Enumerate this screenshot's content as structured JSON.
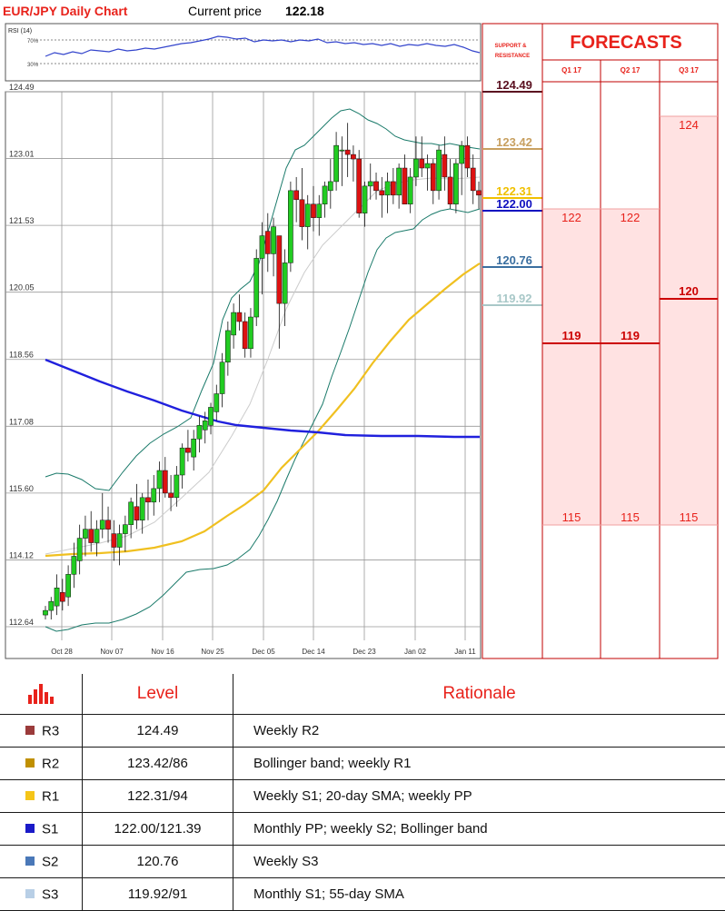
{
  "header": {
    "title": "EUR/JPY Daily Chart",
    "price_label": "Current price",
    "price_value": "122.18"
  },
  "rsi": {
    "label": "RSI (14)",
    "level_high": "70%",
    "level_low": "30%"
  },
  "sr_header": "SUPPORT & RESISTANCE",
  "forecasts": {
    "title": "FORECASTS",
    "quarters": [
      "Q1 17",
      "Q2 17",
      "Q3 17"
    ],
    "columns": [
      {
        "high": 122,
        "mid": 119,
        "low": 115
      },
      {
        "high": 122,
        "mid": 119,
        "low": 115
      },
      {
        "high": 124,
        "mid": 120,
        "low": 115
      }
    ]
  },
  "levels": [
    {
      "value": "124.49",
      "color": "#5a1020",
      "key": "R3"
    },
    {
      "value": "123.42",
      "color": "#c8a060",
      "key": "R2"
    },
    {
      "value": "122.31",
      "color": "#f0c000",
      "key": "R1"
    },
    {
      "value": "122.00",
      "color": "#1010c0",
      "key": "S1"
    },
    {
      "value": "120.76",
      "color": "#3a6fa0",
      "key": "S2"
    },
    {
      "value": "119.92",
      "color": "#a8c8c8",
      "key": "S3"
    }
  ],
  "chart_data": {
    "type": "candlestick",
    "title": "EUR/JPY Daily Chart",
    "y_ticks": [
      "124.49",
      "123.01",
      "121.53",
      "120.05",
      "118.56",
      "117.08",
      "115.60",
      "114.12",
      "112.64"
    ],
    "x_ticks": [
      "Oct 28",
      "Nov 07",
      "Nov 16",
      "Nov 25",
      "Dec 05",
      "Dec 14",
      "Dec 23",
      "Jan 02",
      "Jan 11"
    ],
    "ylim": [
      112.64,
      124.49
    ],
    "series": [
      {
        "name": "",
        "type": "candles",
        "ohlc": [
          [
            112.9,
            113.1,
            112.8,
            113.0
          ],
          [
            113.0,
            113.3,
            112.8,
            113.2
          ],
          [
            113.1,
            113.8,
            112.9,
            113.5
          ],
          [
            113.4,
            113.7,
            113.0,
            113.2
          ],
          [
            113.3,
            114.0,
            113.1,
            113.8
          ],
          [
            113.8,
            114.5,
            113.5,
            114.2
          ],
          [
            114.1,
            114.9,
            113.8,
            114.6
          ],
          [
            114.6,
            115.1,
            114.2,
            114.8
          ],
          [
            114.8,
            115.2,
            114.3,
            114.5
          ],
          [
            114.5,
            115.0,
            114.2,
            114.8
          ],
          [
            114.8,
            115.6,
            114.6,
            115.0
          ],
          [
            115.0,
            115.3,
            114.5,
            114.8
          ],
          [
            114.7,
            115.0,
            114.1,
            114.4
          ],
          [
            114.4,
            114.9,
            114.0,
            114.7
          ],
          [
            114.7,
            115.1,
            114.3,
            114.9
          ],
          [
            114.9,
            115.5,
            114.6,
            115.4
          ],
          [
            115.3,
            115.8,
            114.8,
            115.0
          ],
          [
            115.0,
            115.6,
            114.7,
            115.5
          ],
          [
            115.5,
            115.9,
            115.0,
            115.4
          ],
          [
            115.4,
            116.0,
            115.1,
            115.7
          ],
          [
            115.7,
            116.3,
            115.4,
            116.1
          ],
          [
            116.1,
            116.4,
            115.5,
            115.6
          ],
          [
            115.6,
            116.0,
            115.2,
            115.5
          ],
          [
            115.5,
            116.2,
            115.3,
            116.0
          ],
          [
            116.0,
            116.7,
            115.7,
            116.6
          ],
          [
            116.6,
            117.0,
            116.3,
            116.5
          ],
          [
            116.4,
            117.0,
            116.1,
            116.8
          ],
          [
            116.8,
            117.3,
            116.5,
            117.1
          ],
          [
            117.0,
            117.4,
            116.7,
            117.2
          ],
          [
            117.1,
            117.6,
            116.9,
            117.5
          ],
          [
            117.4,
            118.0,
            117.2,
            117.8
          ],
          [
            117.8,
            118.7,
            117.5,
            118.5
          ],
          [
            118.5,
            119.4,
            118.2,
            119.2
          ],
          [
            119.1,
            119.8,
            118.8,
            119.6
          ],
          [
            119.6,
            120.0,
            119.2,
            119.4
          ],
          [
            119.4,
            119.6,
            118.6,
            118.8
          ],
          [
            118.8,
            119.7,
            118.6,
            119.5
          ],
          [
            119.5,
            121.0,
            119.3,
            120.8
          ],
          [
            120.8,
            121.6,
            120.0,
            121.3
          ],
          [
            121.4,
            121.8,
            120.5,
            120.9
          ],
          [
            120.9,
            121.7,
            120.4,
            121.5
          ],
          [
            121.3,
            121.3,
            118.8,
            119.8
          ],
          [
            119.8,
            121.0,
            119.3,
            120.7
          ],
          [
            120.7,
            122.5,
            120.5,
            122.3
          ],
          [
            122.3,
            122.6,
            121.6,
            122.1
          ],
          [
            122.1,
            122.8,
            121.2,
            121.5
          ],
          [
            121.5,
            122.2,
            121.0,
            122.0
          ],
          [
            122.0,
            122.4,
            121.4,
            121.7
          ],
          [
            121.7,
            122.2,
            121.3,
            122.0
          ],
          [
            122.0,
            122.5,
            121.7,
            122.4
          ],
          [
            122.3,
            123.0,
            121.9,
            122.5
          ],
          [
            122.5,
            123.6,
            122.3,
            123.3
          ],
          [
            123.2,
            123.5,
            122.4,
            123.2
          ],
          [
            123.2,
            123.8,
            122.6,
            123.1
          ],
          [
            123.1,
            123.3,
            122.5,
            123.0
          ],
          [
            123.0,
            123.2,
            121.7,
            121.8
          ],
          [
            121.8,
            122.5,
            121.5,
            122.4
          ],
          [
            122.4,
            122.9,
            122.1,
            122.5
          ],
          [
            122.5,
            122.7,
            122.1,
            122.3
          ],
          [
            122.3,
            122.6,
            121.7,
            122.2
          ],
          [
            122.2,
            122.7,
            121.8,
            122.5
          ],
          [
            122.5,
            122.8,
            122.0,
            122.2
          ],
          [
            122.2,
            122.9,
            121.9,
            122.8
          ],
          [
            122.8,
            123.1,
            122.0,
            122.0
          ],
          [
            122.0,
            122.8,
            121.8,
            122.6
          ],
          [
            122.6,
            123.5,
            122.4,
            123.0
          ],
          [
            123.0,
            123.5,
            122.6,
            122.8
          ],
          [
            122.8,
            123.1,
            122.3,
            122.9
          ],
          [
            122.9,
            123.0,
            122.0,
            122.3
          ],
          [
            122.3,
            123.3,
            122.1,
            123.2
          ],
          [
            123.1,
            123.5,
            122.3,
            122.6
          ],
          [
            122.6,
            123.0,
            121.9,
            122.0
          ],
          [
            122.0,
            123.0,
            121.8,
            122.9
          ],
          [
            122.9,
            123.4,
            122.2,
            123.3
          ],
          [
            123.3,
            123.5,
            122.6,
            122.8
          ],
          [
            122.8,
            123.1,
            122.0,
            122.3
          ],
          [
            122.3,
            122.5,
            121.9,
            122.2
          ]
        ]
      }
    ]
  }
}
